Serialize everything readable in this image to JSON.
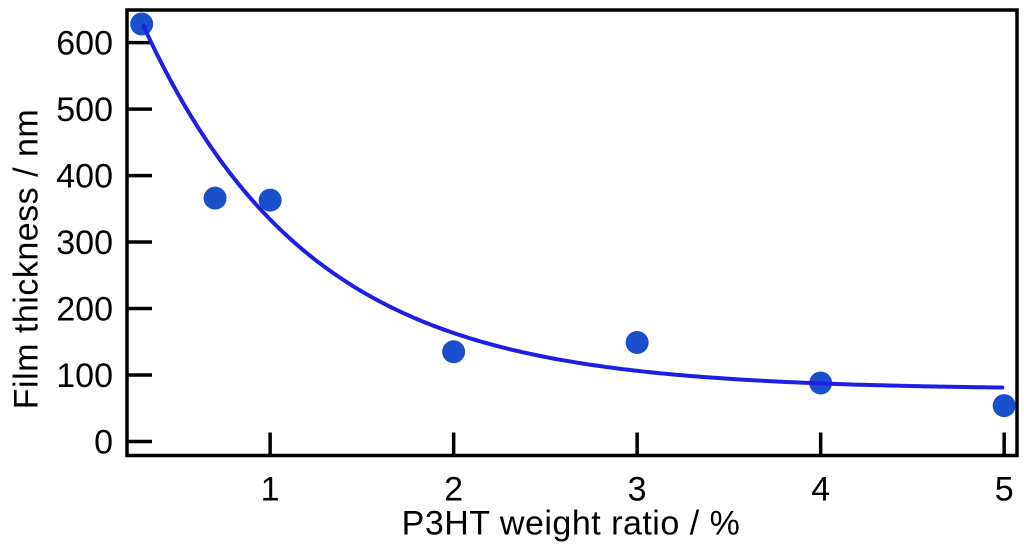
{
  "chart_data": {
    "type": "scatter",
    "title": "",
    "xlabel": "P3HT weight ratio / %",
    "ylabel": "Film thickness / nm",
    "xlim": [
      0.22,
      5.07
    ],
    "ylim": [
      -21,
      649
    ],
    "x_ticks": [
      "1",
      "2",
      "3",
      "4",
      "5"
    ],
    "x_tick_values": [
      1,
      2,
      3,
      4,
      5
    ],
    "y_ticks": [
      "0",
      "100",
      "200",
      "300",
      "400",
      "500",
      "600"
    ],
    "y_tick_values": [
      0,
      100,
      200,
      300,
      400,
      500,
      600
    ],
    "grid": false,
    "legend": null,
    "points": [
      {
        "x": 0.3,
        "y": 628
      },
      {
        "x": 0.7,
        "y": 366
      },
      {
        "x": 1.0,
        "y": 363
      },
      {
        "x": 2.0,
        "y": 135
      },
      {
        "x": 3.0,
        "y": 149
      },
      {
        "x": 4.0,
        "y": 88
      },
      {
        "x": 5.0,
        "y": 54
      }
    ],
    "fit_curve": {
      "type": "exponential_decay",
      "formula": "y = 78 + 769*exp(-1.1*x)",
      "a": 769,
      "b": 1.1,
      "c": 78,
      "x_start": 0.31,
      "x_end": 5.0
    },
    "colors": {
      "marker": "#1b50cc",
      "curve": "#1e1ee4",
      "axis": "#000000",
      "text": "#000000"
    }
  }
}
